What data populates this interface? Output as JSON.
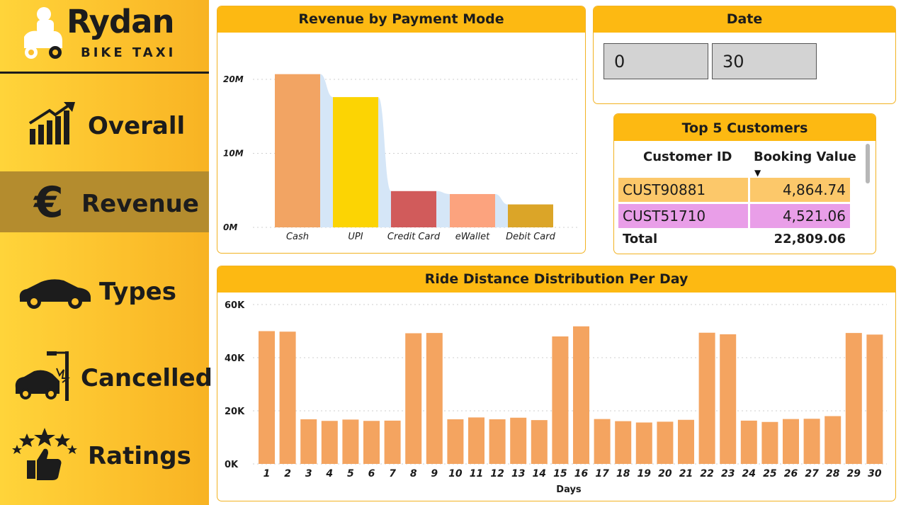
{
  "brand": {
    "name": "Rydan",
    "subtitle": "BIKE TAXI"
  },
  "nav": [
    {
      "label": "Overall",
      "icon": "growth-chart-icon",
      "active": false
    },
    {
      "label": "Revenue",
      "icon": "euro-icon",
      "active": true
    },
    {
      "label": "Types",
      "icon": "car-icon",
      "active": false
    },
    {
      "label": "Cancelled",
      "icon": "car-crash-icon",
      "active": false
    },
    {
      "label": "Ratings",
      "icon": "stars-thumbs-up-icon",
      "active": false
    }
  ],
  "revenue_card": {
    "title": "Revenue by Payment Mode"
  },
  "date_card": {
    "title": "Date",
    "from": "0",
    "to": "30"
  },
  "top_customers": {
    "title": "Top 5 Customers",
    "col_id": "Customer ID",
    "col_value": "Booking Value",
    "rows": [
      {
        "id": "CUST90881",
        "value": "4,864.74"
      },
      {
        "id": "CUST51710",
        "value": "4,521.06"
      }
    ],
    "total_label": "Total",
    "total_value": "22,809.06"
  },
  "distance_card": {
    "title": "Ride Distance Distribution Per Day"
  },
  "colors": {
    "accent": "#fdb912",
    "bar_orange": "#f4a460",
    "row1": "#fcc86a",
    "row2": "#e99ee8"
  },
  "chart_data": [
    {
      "type": "bar",
      "title": "Revenue by Payment Mode",
      "categories": [
        "Cash",
        "UPI",
        "Credit Card",
        "eWallet",
        "Debit Card"
      ],
      "values": [
        20.7,
        17.6,
        4.9,
        4.5,
        3.1
      ],
      "colors": [
        "#f2a463",
        "#fcd403",
        "#d15b5b",
        "#fca37e",
        "#dba528"
      ],
      "yticks": [
        "0M",
        "10M",
        "20M"
      ],
      "ylim": [
        0,
        22
      ],
      "ylabel": "",
      "xlabel": ""
    },
    {
      "type": "bar",
      "title": "Ride Distance Distribution Per Day",
      "categories": [
        "1",
        "2",
        "3",
        "4",
        "5",
        "6",
        "7",
        "8",
        "9",
        "10",
        "11",
        "12",
        "13",
        "14",
        "15",
        "16",
        "17",
        "18",
        "19",
        "20",
        "21",
        "22",
        "23",
        "24",
        "25",
        "26",
        "27",
        "28",
        "29",
        "30"
      ],
      "values": [
        50000,
        49800,
        16800,
        16200,
        16700,
        16200,
        16300,
        49200,
        49300,
        16800,
        17500,
        16800,
        17400,
        16500,
        48000,
        51800,
        16900,
        16100,
        15600,
        15900,
        16600,
        49400,
        48800,
        16300,
        15800,
        16900,
        17000,
        18000,
        49300,
        48700
      ],
      "yticks": [
        "0K",
        "20K",
        "40K",
        "60K"
      ],
      "ylim": [
        0,
        60000
      ],
      "xlabel": "Days",
      "ylabel": ""
    }
  ]
}
